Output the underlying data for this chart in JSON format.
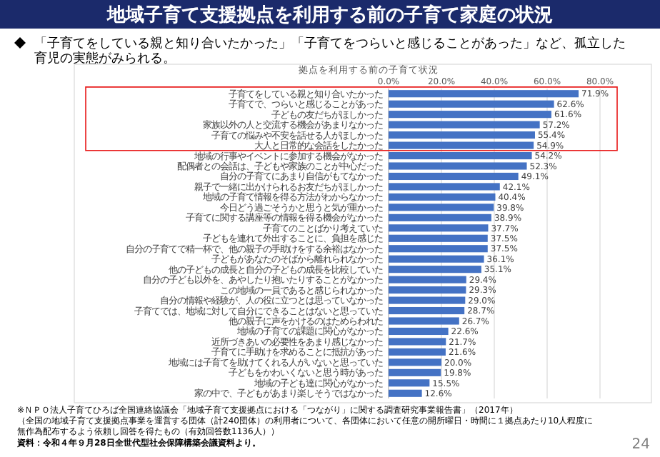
{
  "chart_data": {
    "type": "bar",
    "orientation": "horizontal",
    "title": "地域子育て支援拠点を利用する前の子育て家庭の状況",
    "subtitle": "「子育てをしている親と知り合いたかった」「子育てをつらいと感じることがあった」など、孤立した育児の実態がみられる。",
    "categories": [
      "子育てをしている親と知り合いたかった",
      "子育てで、つらいと感じることがあった",
      "子どもの友だちがほしかった",
      "家族以外の人と交流する機会があまりなかった",
      "子育ての悩みや不安を話せる人がほしかった",
      "大人と日常的な会話をしたかった",
      "地域の行事やイベントに参加する機会がなかった",
      "配偶者との会話は、子どもや家族のことが中心だった",
      "自分の子育てにあまり自信がもてなかった",
      "親子で一緒に出かけられるお友だちがほしかった",
      "地域の子育て情報を得る方法がわからなかった",
      "今日どう過ごそうかと思うと気が重かった",
      "子育てに関する講座等の情報を得る機会がなかった",
      "子育てのことばかり考えていた",
      "子どもを連れて外出することに、負担を感じた",
      "自分の子育てで精一杯で、他の親子の手助けをする余裕はなかった",
      "子どもがあなたのそばから離れられなかった",
      "他の子どもの成長と自分の子どもの成長を比較していた",
      "自分の子ども以外を、あやしたり抱いたりすることがなかった",
      "この地域の一員であると感じられなかった",
      "自分の情報や経験が、人の役に立つとは思っていなかった",
      "子育てでは、地域に対して自分にできることはないと思っていた",
      "他の親子に声をかけるのはためらわれた",
      "地域の子育ての課題に関心がなかった",
      "近所づきあいの必要性をあまり感じなかった",
      "子育てに手助けを求めることに抵抗があった",
      "地域には子育てを助けてくれる人がいないと思っていた",
      "子どもをかわいくないと思う時があった",
      "地域の子ども達に関心がなかった",
      "家の中で、子どもがあまり楽しそうではなかった"
    ],
    "values": [
      71.9,
      62.6,
      61.6,
      57.2,
      55.4,
      54.9,
      54.2,
      52.3,
      49.1,
      42.1,
      40.4,
      39.8,
      38.9,
      37.7,
      37.5,
      37.5,
      36.1,
      35.1,
      29.4,
      29.3,
      29.0,
      28.7,
      26.7,
      22.6,
      21.7,
      21.6,
      20.0,
      19.8,
      15.5,
      12.6
    ],
    "value_labels": [
      "71.9%",
      "62.6%",
      "61.6%",
      "57.2%",
      "55.4%",
      "54.9%",
      "54.2%",
      "52.3%",
      "49.1%",
      "42.1%",
      "40.4%",
      "39.8%",
      "38.9%",
      "37.7%",
      "37.5%",
      "37.5%",
      "36.1%",
      "35.1%",
      "29.4%",
      "29.3%",
      "29.0%",
      "28.7%",
      "26.7%",
      "22.6%",
      "21.7%",
      "21.6%",
      "20.0%",
      "19.8%",
      "15.5%",
      "12.6%"
    ],
    "color": "#4472c4",
    "xlim": [
      0,
      80
    ],
    "xticks": [
      {
        "value": 0,
        "label": "0.0%"
      },
      {
        "value": 20,
        "label": "20.0%"
      },
      {
        "value": 40,
        "label": "40.0%"
      },
      {
        "value": 60,
        "label": "60.0%"
      },
      {
        "value": 80,
        "label": "80.0%"
      }
    ],
    "grid": "x",
    "annotations": [
      "拠点を利用する前の子育て状況",
      "※ＮＰＯ法人子育てひろば全国連絡協議会「地域子育て支援拠点における「つながり」に関する調査研究事業報告書」（2017年）",
      "（全国の地域子育て支援拠点事業を運営する団体（計240団体）の利用者について、各団体において任意の開所曜日・時間に１拠点あたり10人程度に無作為配布するよう依頼し回答を得たもの（有効回答数1136人））",
      "資料：令和４年９月28日全世代型社会保障構築会議資料より。",
      "24"
    ]
  }
}
